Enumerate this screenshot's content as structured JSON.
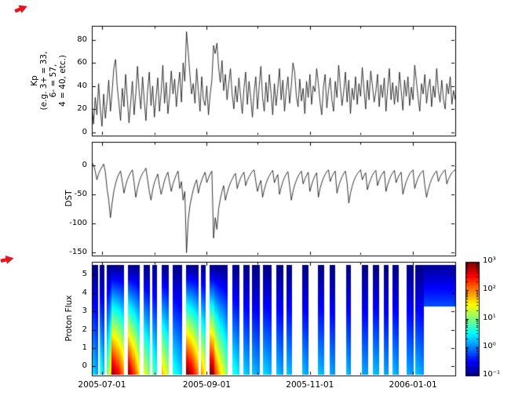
{
  "figure": {
    "x_axis": {
      "tick_labels": [
        "2005-07-01",
        "2005-09-01",
        "2005-11-01",
        "2006-01-01"
      ],
      "tick_days": [
        6,
        68,
        129,
        190
      ],
      "minor_tick_days": [
        37,
        98,
        159
      ],
      "domain_days": [
        0,
        215
      ],
      "epoch": "2005-06-25"
    },
    "colorbar": {
      "colormap": "jet",
      "scale": "log10",
      "range_exponents": [
        -1,
        3
      ],
      "tick_labels": [
        "10³",
        "10²",
        "10¹",
        "10⁰",
        "10⁻¹"
      ],
      "tick_exponents": [
        3,
        2,
        1,
        0,
        -1
      ]
    },
    "annotation_marker_color": "#e8141e"
  },
  "chart_data": [
    {
      "type": "line",
      "name": "Kp",
      "ylabel_lines": [
        "Kp",
        "(e.g. 3+ = 33,",
        "6- = 57,",
        "4 = 40, etc.)"
      ],
      "ylim": [
        -3,
        92
      ],
      "yticks": [
        0,
        20,
        40,
        60,
        80
      ],
      "line_color": "#000000",
      "x_unit": "days since 2005-06-25",
      "t0": 0,
      "dt": 1,
      "values": [
        25,
        7,
        30,
        15,
        42,
        20,
        5,
        33,
        12,
        27,
        45,
        18,
        35,
        55,
        63,
        40,
        25,
        10,
        38,
        22,
        50,
        28,
        8,
        26,
        44,
        15,
        33,
        57,
        35,
        20,
        48,
        27,
        10,
        36,
        52,
        23,
        40,
        13,
        30,
        47,
        18,
        34,
        58,
        25,
        43,
        16,
        31,
        53,
        33,
        46,
        22,
        39,
        52,
        26,
        60,
        44,
        87,
        70,
        50,
        33,
        42,
        25,
        55,
        36,
        18,
        48,
        28,
        23,
        40,
        15,
        33,
        45,
        75,
        68,
        77,
        56,
        43,
        62,
        36,
        50,
        28,
        42,
        55,
        33,
        20,
        40,
        26,
        47,
        31,
        16,
        38,
        52,
        24,
        44,
        30,
        13,
        35,
        48,
        20,
        40,
        57,
        30,
        18,
        43,
        26,
        50,
        34,
        15,
        42,
        23,
        38,
        55,
        28,
        45,
        18,
        36,
        48,
        25,
        40,
        60,
        52,
        31,
        22,
        46,
        27,
        38,
        16,
        44,
        30,
        50,
        24,
        40,
        35,
        55,
        42,
        26,
        15,
        39,
        50,
        21,
        36,
        47,
        28,
        18,
        44,
        30,
        58,
        40,
        23,
        35,
        52,
        26,
        45,
        16,
        38,
        28,
        48,
        24,
        42,
        31,
        56,
        37,
        20,
        45,
        28,
        53,
        40,
        26,
        35,
        50,
        22,
        41,
        30,
        47,
        18,
        38,
        55,
        28,
        43,
        24,
        40,
        26,
        52,
        36,
        19,
        45,
        31,
        48,
        23,
        39,
        28,
        58,
        44,
        30,
        18,
        42,
        33,
        50,
        25,
        38,
        46,
        22,
        40,
        30,
        55,
        36,
        26,
        45,
        28,
        20,
        42,
        33,
        48,
        24,
        36,
        28
      ]
    },
    {
      "type": "line",
      "name": "DST",
      "ylabel_lines": [
        "DST"
      ],
      "ylim": [
        -155,
        40
      ],
      "yticks": [
        0,
        -50,
        -100,
        -150
      ],
      "line_color": "#000000",
      "x_unit": "days since 2005-06-25",
      "t0": 0,
      "dt": 1,
      "values": [
        5,
        0,
        -10,
        -25,
        -15,
        -8,
        -3,
        2,
        -12,
        -40,
        -60,
        -90,
        -65,
        -45,
        -32,
        -22,
        -15,
        -10,
        -28,
        -48,
        -35,
        -25,
        -18,
        -12,
        -8,
        -30,
        -55,
        -40,
        -28,
        -20,
        -14,
        -10,
        -5,
        -25,
        -45,
        -60,
        -42,
        -30,
        -22,
        -15,
        -35,
        -50,
        -38,
        -26,
        -18,
        -12,
        -30,
        -45,
        -32,
        -24,
        -16,
        -10,
        -40,
        -28,
        -60,
        -45,
        -150,
        -95,
        -70,
        -55,
        -42,
        -32,
        -25,
        -48,
        -35,
        -26,
        -18,
        -12,
        -30,
        -22,
        -15,
        -10,
        -125,
        -90,
        -110,
        -75,
        -58,
        -45,
        -35,
        -60,
        -48,
        -38,
        -30,
        -24,
        -18,
        -14,
        -40,
        -30,
        -22,
        -16,
        -12,
        -35,
        -26,
        -20,
        -15,
        -10,
        -8,
        -28,
        -45,
        -34,
        -26,
        -55,
        -42,
        -32,
        -24,
        -18,
        -13,
        -9,
        -30,
        -22,
        -16,
        -50,
        -38,
        -28,
        -21,
        -15,
        -11,
        -35,
        -60,
        -45,
        -34,
        -26,
        -19,
        -14,
        -10,
        -32,
        -24,
        -17,
        -12,
        -45,
        -34,
        -25,
        -18,
        -13,
        -55,
        -40,
        -30,
        -22,
        -16,
        -11,
        -8,
        -28,
        -20,
        -14,
        -10,
        -48,
        -36,
        -27,
        -20,
        -14,
        -10,
        -30,
        -65,
        -48,
        -36,
        -27,
        -20,
        -15,
        -11,
        -8,
        -25,
        -18,
        -13,
        -42,
        -32,
        -24,
        -17,
        -12,
        -9,
        -35,
        -26,
        -19,
        -14,
        -10,
        -45,
        -34,
        -25,
        -18,
        -13,
        -9,
        -30,
        -22,
        -16,
        -12,
        -50,
        -38,
        -28,
        -21,
        -15,
        -11,
        -8,
        -40,
        -30,
        -22,
        -16,
        -12,
        -9,
        -35,
        -55,
        -42,
        -32,
        -24,
        -18,
        -13,
        -10,
        -28,
        -20,
        -15,
        -11,
        -8,
        -32,
        -24,
        -18,
        -13,
        -10,
        -8
      ]
    },
    {
      "type": "heatmap",
      "name": "Proton Flux",
      "ylabel_lines": [
        "Proton Flux"
      ],
      "ylim": [
        -0.5,
        5.7
      ],
      "yticks": [
        0,
        1,
        2,
        3,
        4,
        5
      ],
      "value_scale": "log10(flux)",
      "color_range_exponents": [
        -1,
        3
      ],
      "gradient_top_value": -1.0,
      "column_y_span": [
        -0.42,
        5.55
      ],
      "segments_format": "[day_start, day_end, log10flux_bottom_at_start, log10flux_bottom_at_end]",
      "segments": [
        [
          0,
          3.3,
          0.5,
          0.1
        ],
        [
          4.6,
          7.4,
          0.8,
          0.3
        ],
        [
          8.8,
          11.6,
          0.8,
          1.8
        ],
        [
          11.6,
          15,
          3.0,
          2.6
        ],
        [
          15,
          19,
          2.6,
          2.0
        ],
        [
          20.9,
          24.5,
          3.0,
          2.4
        ],
        [
          24.5,
          28.3,
          2.4,
          1.6
        ],
        [
          30.2,
          33.9,
          1.5,
          1.0
        ],
        [
          35.3,
          38.5,
          1.0,
          0.6
        ],
        [
          40.9,
          45.5,
          1.8,
          1.2
        ],
        [
          47.8,
          53.4,
          0.7,
          0.3
        ],
        [
          55.3,
          58.5,
          3.1,
          2.8
        ],
        [
          58.5,
          62.7,
          2.8,
          2.0
        ],
        [
          64.1,
          67.3,
          2.0,
          1.5
        ],
        [
          69.6,
          72.0,
          3.1,
          2.9
        ],
        [
          72.0,
          76.5,
          2.4,
          1.6
        ],
        [
          76.5,
          80.3,
          1.6,
          1.0
        ],
        [
          82.7,
          87.3,
          0.7,
          0.4
        ],
        [
          89.6,
          93.3,
          0.4,
          0.2
        ],
        [
          94.5,
          99.0,
          0.3,
          0.1
        ],
        [
          101,
          106,
          0.4,
          0.2
        ],
        [
          109,
          113,
          0.3,
          0.1
        ],
        [
          115,
          118.4,
          0.3,
          0.2
        ],
        [
          124.4,
          127.7,
          0.3,
          0.1
        ],
        [
          133.7,
          137,
          0.3,
          0.2
        ],
        [
          140.7,
          143.5,
          0.2,
          0.1
        ],
        [
          150,
          152.8,
          0.3,
          0.1
        ],
        [
          159.3,
          163,
          0.2,
          0.1
        ],
        [
          165.8,
          169.5,
          0.3,
          0.2
        ],
        [
          172.3,
          175.5,
          0.2,
          0.1
        ],
        [
          177.8,
          181.5,
          0.3,
          0.1
        ],
        [
          186,
          190,
          0.2,
          0.1
        ],
        [
          191,
          196,
          0.3,
          0.1
        ]
      ],
      "upper_band": {
        "d0": 196,
        "d1": 215,
        "ymin": 3.3,
        "value_bottom": -0.2,
        "value_top": -0.9
      }
    }
  ]
}
